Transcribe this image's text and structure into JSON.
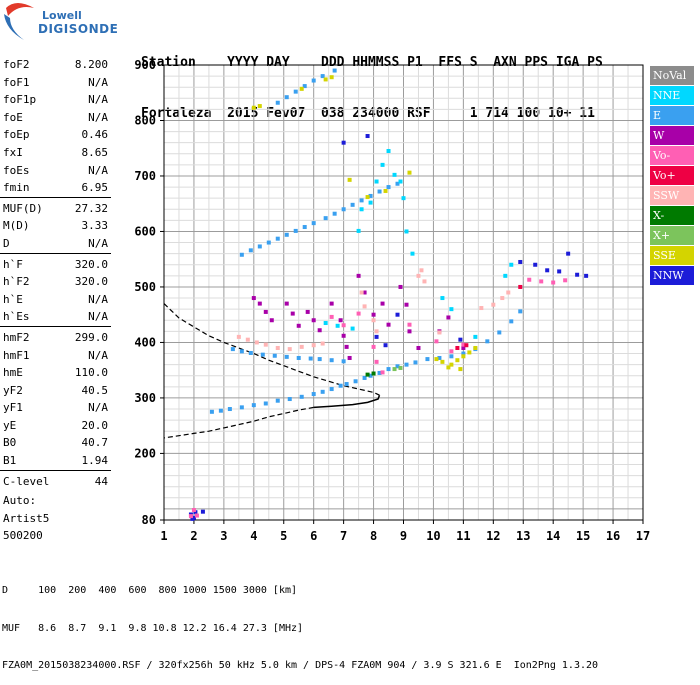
{
  "logo": {
    "brand": "Lowell",
    "name": "DIGISONDE"
  },
  "header": {
    "labels_line": "Station    YYYY DAY    DDD HHMMSS P1  FFS S  AXN PPS IGA PS",
    "values_line": "Fortaleza  2015 Fev07  038 234000 RSF     1 714 100 10+ 11"
  },
  "params": [
    {
      "label": "foF2",
      "value": "8.200"
    },
    {
      "label": "foF1",
      "value": "N/A"
    },
    {
      "label": "foF1p",
      "value": "N/A"
    },
    {
      "label": "foE",
      "value": "N/A"
    },
    {
      "label": "foEp",
      "value": "0.46"
    },
    {
      "label": "fxI",
      "value": "8.65"
    },
    {
      "label": "foEs",
      "value": "N/A"
    },
    {
      "label": "fmin",
      "value": "6.95"
    },
    {
      "label": "MUF(D)",
      "value": "27.32"
    },
    {
      "label": "M(D)",
      "value": "3.33"
    },
    {
      "label": "D",
      "value": "N/A"
    },
    {
      "label": "h`F",
      "value": "320.0"
    },
    {
      "label": "h`F2",
      "value": "320.0"
    },
    {
      "label": "h`E",
      "value": "N/A"
    },
    {
      "label": "h`Es",
      "value": "N/A"
    },
    {
      "label": "hmF2",
      "value": "299.0"
    },
    {
      "label": "hmF1",
      "value": "N/A"
    },
    {
      "label": "hmE",
      "value": "110.0"
    },
    {
      "label": "yF2",
      "value": "40.5"
    },
    {
      "label": "yF1",
      "value": "N/A"
    },
    {
      "label": "yE",
      "value": "20.0"
    },
    {
      "label": "B0",
      "value": "40.7"
    },
    {
      "label": "B1",
      "value": "1.94"
    },
    {
      "label": "C-level",
      "value": "44"
    }
  ],
  "autoscaling": {
    "line1": "Auto:",
    "line2": "Artist5",
    "line3": "500200"
  },
  "legend": [
    {
      "label": "NoVal",
      "color": "#8c8c8c",
      "text_color": "#ffffff"
    },
    {
      "label": "NNE",
      "color": "#00d8ff",
      "text_color": "#ffffff"
    },
    {
      "label": "E",
      "color": "#3aa0f0",
      "text_color": "#ffffff"
    },
    {
      "label": "W",
      "color": "#a800a8",
      "text_color": "#ffffff"
    },
    {
      "label": "Vo-",
      "color": "#ff5fb4",
      "text_color": "#ffffff"
    },
    {
      "label": "Vo+",
      "color": "#ee0044",
      "text_color": "#ffffff"
    },
    {
      "label": "SSW",
      "color": "#ffb4b4",
      "text_color": "#ffffff"
    },
    {
      "label": "X-",
      "color": "#007a00",
      "text_color": "#ffffff"
    },
    {
      "label": "X+",
      "color": "#7cc45c",
      "text_color": "#ffffff"
    },
    {
      "label": "SSE",
      "color": "#d4d400",
      "text_color": "#ffffff"
    },
    {
      "label": "NNW",
      "color": "#1c1cd8",
      "text_color": "#ffffff"
    }
  ],
  "footer": {
    "line1": "D     100  200  400  600  800 1000 1500 3000 [km]",
    "line2": "MUF   8.6  8.7  9.1  9.8 10.8 12.2 16.4 27.3 [MHz]",
    "line3": "FZA0M_2015038234000.RSF / 320fx256h 50 kHz 5.0 km / DPS-4 FZA0M 904 / 3.9 S 321.6 E  Ion2Png 1.3.20"
  },
  "chart_data": {
    "type": "scatter",
    "xlim": [
      1,
      17
    ],
    "ylim": [
      80,
      900
    ],
    "x_ticks": [
      1,
      2,
      3,
      4,
      5,
      6,
      7,
      8,
      9,
      10,
      11,
      12,
      13,
      14,
      15,
      16,
      17
    ],
    "y_ticks": [
      80,
      200,
      300,
      400,
      500,
      600,
      700,
      800,
      900
    ],
    "x_minor_step": 0.5,
    "y_minor_step": 20,
    "grid": true,
    "legend_placement": "right",
    "profile": {
      "style": "solid-and-dashed",
      "color": "#000000",
      "dashed_upper": [
        [
          1,
          470
        ],
        [
          1.5,
          444
        ],
        [
          2,
          428
        ],
        [
          2.5,
          412
        ],
        [
          3,
          400
        ],
        [
          3.5,
          390
        ],
        [
          4,
          380
        ],
        [
          4.5,
          368
        ],
        [
          5,
          358
        ],
        [
          5.5,
          348
        ],
        [
          6,
          338
        ],
        [
          6.5,
          330
        ],
        [
          7,
          322
        ],
        [
          7.5,
          316
        ],
        [
          8,
          310
        ],
        [
          8.2,
          305
        ]
      ],
      "solid": [
        [
          8.2,
          305
        ],
        [
          8.15,
          298
        ],
        [
          7.8,
          292
        ],
        [
          7.3,
          288
        ],
        [
          6.6,
          285
        ],
        [
          6,
          283
        ]
      ],
      "dashed_lower": [
        [
          6,
          283
        ],
        [
          5.5,
          278
        ],
        [
          5,
          272
        ],
        [
          4.5,
          266
        ],
        [
          4,
          258
        ],
        [
          3.5,
          252
        ],
        [
          3,
          246
        ],
        [
          2.5,
          240
        ],
        [
          2,
          236
        ],
        [
          1.5,
          232
        ],
        [
          1,
          228
        ]
      ]
    },
    "traces": [
      {
        "name": "E",
        "points": [
          [
            2.6,
            275
          ],
          [
            2.9,
            277
          ],
          [
            3.2,
            280
          ],
          [
            3.6,
            283
          ],
          [
            4,
            287
          ],
          [
            4.4,
            290
          ],
          [
            4.8,
            295
          ],
          [
            5.2,
            298
          ],
          [
            5.6,
            302
          ],
          [
            6,
            307
          ],
          [
            6.3,
            311
          ],
          [
            6.6,
            316
          ],
          [
            6.9,
            322
          ],
          [
            7.1,
            325
          ],
          [
            7.4,
            330
          ],
          [
            7.7,
            336
          ],
          [
            7.9,
            340
          ],
          [
            8.2,
            345
          ],
          [
            8.5,
            352
          ],
          [
            8.8,
            357
          ],
          [
            9.1,
            360
          ],
          [
            9.4,
            364
          ],
          [
            9.8,
            370
          ],
          [
            10.2,
            372
          ],
          [
            10.6,
            375
          ],
          [
            11,
            380
          ],
          [
            11.4,
            388
          ],
          [
            11.8,
            402
          ],
          [
            12.2,
            418
          ],
          [
            12.6,
            438
          ],
          [
            12.9,
            456
          ]
        ]
      },
      {
        "name": "E",
        "points": [
          [
            3.3,
            388
          ],
          [
            3.6,
            384
          ],
          [
            3.9,
            381
          ],
          [
            4.3,
            378
          ],
          [
            4.7,
            376
          ],
          [
            5.1,
            374
          ],
          [
            5.5,
            372
          ],
          [
            5.9,
            371
          ],
          [
            6.2,
            370
          ],
          [
            6.6,
            368
          ],
          [
            7,
            366
          ]
        ]
      },
      {
        "name": "E",
        "points": [
          [
            3.6,
            558
          ],
          [
            3.9,
            566
          ],
          [
            4.2,
            573
          ],
          [
            4.5,
            580
          ],
          [
            4.8,
            587
          ],
          [
            5.1,
            594
          ],
          [
            5.4,
            601
          ],
          [
            5.7,
            608
          ],
          [
            6,
            615
          ],
          [
            6.4,
            624
          ],
          [
            6.7,
            632
          ],
          [
            7,
            640
          ],
          [
            7.3,
            648
          ],
          [
            7.6,
            656
          ],
          [
            7.9,
            664
          ],
          [
            8.2,
            672
          ],
          [
            8.5,
            680
          ],
          [
            8.8,
            686
          ]
        ]
      },
      {
        "name": "E",
        "points": [
          [
            4.8,
            832
          ],
          [
            5.1,
            842
          ],
          [
            5.4,
            852
          ],
          [
            5.7,
            862
          ],
          [
            6,
            872
          ],
          [
            6.3,
            880
          ],
          [
            6.7,
            890
          ]
        ]
      },
      {
        "name": "SSE",
        "points": [
          [
            4,
            823
          ],
          [
            4.2,
            826
          ],
          [
            5.6,
            857
          ],
          [
            6.4,
            874
          ],
          [
            6.6,
            878
          ],
          [
            7.2,
            693
          ],
          [
            7.8,
            662
          ],
          [
            8.4,
            673
          ],
          [
            9.2,
            706
          ],
          [
            10.1,
            370
          ],
          [
            10.3,
            365
          ],
          [
            10.6,
            360
          ],
          [
            10.8,
            368
          ],
          [
            11,
            375
          ],
          [
            11.2,
            382
          ],
          [
            11.4,
            390
          ],
          [
            10.5,
            355
          ],
          [
            10.9,
            352
          ]
        ]
      },
      {
        "name": "W",
        "points": [
          [
            4,
            480
          ],
          [
            4.2,
            470
          ],
          [
            4.4,
            455
          ],
          [
            4.6,
            440
          ],
          [
            5.1,
            470
          ],
          [
            5.3,
            452
          ],
          [
            5.5,
            430
          ],
          [
            5.8,
            455
          ],
          [
            6,
            440
          ],
          [
            6.2,
            422
          ],
          [
            6.6,
            470
          ],
          [
            6.9,
            440
          ],
          [
            7,
            412
          ],
          [
            7.1,
            392
          ],
          [
            7.2,
            372
          ],
          [
            7.5,
            520
          ],
          [
            7.7,
            490
          ],
          [
            8,
            450
          ],
          [
            8.3,
            470
          ],
          [
            8.5,
            432
          ],
          [
            8.9,
            500
          ],
          [
            9.1,
            468
          ],
          [
            9.2,
            420
          ],
          [
            9.5,
            390
          ],
          [
            10.2,
            420
          ],
          [
            10.5,
            445
          ],
          [
            11,
            390
          ]
        ]
      },
      {
        "name": "SSW",
        "points": [
          [
            3.5,
            410
          ],
          [
            3.8,
            405
          ],
          [
            4.1,
            400
          ],
          [
            4.4,
            396
          ],
          [
            4.8,
            390
          ],
          [
            5.2,
            388
          ],
          [
            5.6,
            392
          ],
          [
            6,
            395
          ],
          [
            6.3,
            398
          ],
          [
            7.6,
            490
          ],
          [
            7.7,
            465
          ],
          [
            8,
            440
          ],
          [
            8.1,
            420
          ],
          [
            9.5,
            520
          ],
          [
            9.6,
            530
          ],
          [
            9.7,
            510
          ],
          [
            10.2,
            418
          ],
          [
            11.6,
            462
          ],
          [
            12,
            468
          ],
          [
            12.3,
            480
          ],
          [
            12.5,
            490
          ]
        ]
      },
      {
        "name": "Vo-",
        "points": [
          [
            6.6,
            446
          ],
          [
            7,
            431
          ],
          [
            7.5,
            452
          ],
          [
            8,
            392
          ],
          [
            8.1,
            365
          ],
          [
            8.3,
            346
          ],
          [
            9.2,
            432
          ],
          [
            10.1,
            402
          ],
          [
            10.6,
            384
          ],
          [
            11,
            396
          ]
        ]
      },
      {
        "name": "NNE",
        "points": [
          [
            6.4,
            435
          ],
          [
            6.8,
            430
          ],
          [
            7.3,
            425
          ],
          [
            7.5,
            601
          ],
          [
            7.6,
            640
          ],
          [
            7.9,
            652
          ],
          [
            8.1,
            690
          ],
          [
            8.3,
            720
          ],
          [
            8.5,
            745
          ],
          [
            8.7,
            702
          ],
          [
            8.9,
            690
          ],
          [
            9,
            660
          ],
          [
            9.1,
            600
          ],
          [
            9.3,
            560
          ],
          [
            10.3,
            480
          ],
          [
            10.6,
            460
          ],
          [
            11.4,
            410
          ],
          [
            12.4,
            520
          ],
          [
            12.6,
            540
          ]
        ]
      },
      {
        "name": "NNW",
        "points": [
          [
            7,
            760
          ],
          [
            7.8,
            772
          ],
          [
            8.1,
            410
          ],
          [
            8.4,
            395
          ],
          [
            8.8,
            450
          ],
          [
            10.9,
            405
          ],
          [
            12.9,
            545
          ],
          [
            13.4,
            540
          ],
          [
            13.8,
            530
          ],
          [
            14.2,
            528
          ],
          [
            14.5,
            560
          ],
          [
            14.8,
            522
          ],
          [
            15.1,
            520
          ]
        ]
      },
      {
        "name": "Vo+",
        "points": [
          [
            10.8,
            390
          ],
          [
            11.1,
            395
          ],
          [
            12.9,
            500
          ]
        ]
      },
      {
        "name": "X-",
        "points": [
          [
            7.8,
            342
          ],
          [
            8,
            344
          ]
        ]
      },
      {
        "name": "X+",
        "points": [
          [
            8.7,
            352
          ],
          [
            8.9,
            354
          ]
        ]
      },
      {
        "name": "Vo-",
        "points": [
          [
            13.2,
            513
          ],
          [
            13.6,
            510
          ],
          [
            14,
            508
          ],
          [
            14.4,
            512
          ]
        ]
      },
      {
        "name": "NNW",
        "points": [
          [
            1.95,
            82
          ],
          [
            2,
            84
          ],
          [
            1.9,
            90
          ],
          [
            2.05,
            94
          ],
          [
            2.3,
            95
          ]
        ]
      },
      {
        "name": "Vo-",
        "points": [
          [
            1.9,
            87
          ],
          [
            2.1,
            88
          ],
          [
            2,
            98
          ]
        ]
      }
    ]
  }
}
